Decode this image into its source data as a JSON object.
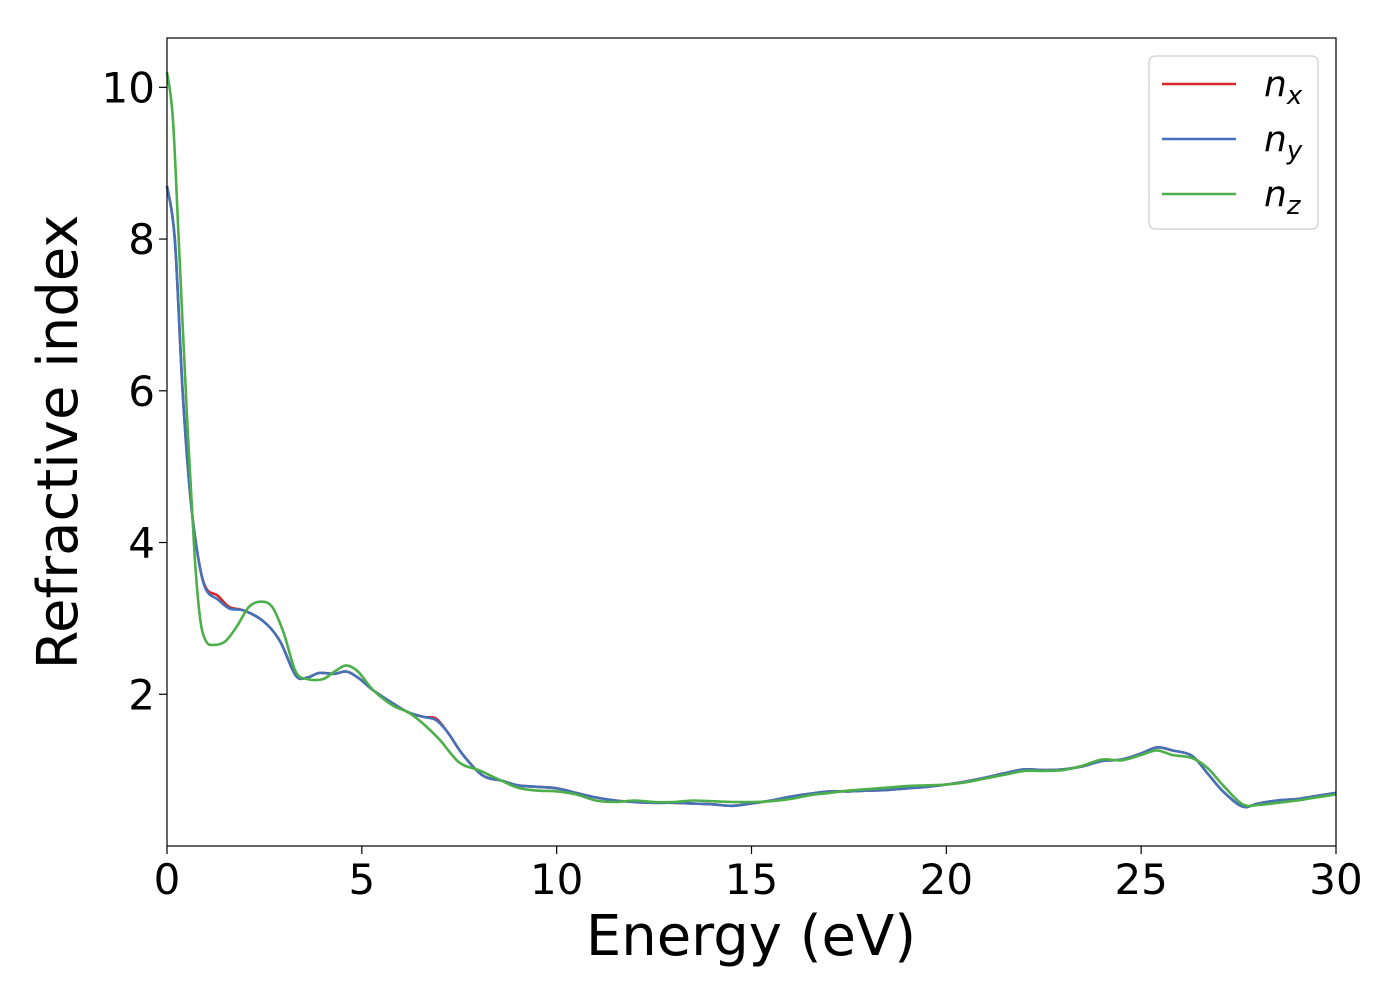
{
  "chart_data": {
    "type": "line",
    "title": "",
    "xlabel": "Energy (eV)",
    "ylabel": "Refractive index",
    "xlim": [
      0,
      30
    ],
    "ylim": [
      0,
      10.65
    ],
    "xticks": [
      0,
      5,
      10,
      15,
      20,
      25,
      30
    ],
    "xtick_labels": [
      "0",
      "5",
      "10",
      "15",
      "20",
      "25",
      "30"
    ],
    "yticks": [
      2,
      4,
      6,
      8,
      10
    ],
    "ytick_labels": [
      "2",
      "4",
      "6",
      "8",
      "10"
    ],
    "grid": false,
    "legend_position": "top-right",
    "series": [
      {
        "name": "n_x",
        "label_base": "n",
        "label_sub": "x",
        "color": "#d62728",
        "points": [
          [
            0,
            8.7
          ],
          [
            0.2,
            8.0
          ],
          [
            0.4,
            6.0
          ],
          [
            0.6,
            4.6
          ],
          [
            0.8,
            3.8
          ],
          [
            1.0,
            3.4
          ],
          [
            1.3,
            3.3
          ],
          [
            1.6,
            3.15
          ],
          [
            2.0,
            3.1
          ],
          [
            2.5,
            2.95
          ],
          [
            2.9,
            2.7
          ],
          [
            3.3,
            2.25
          ],
          [
            3.6,
            2.22
          ],
          [
            3.9,
            2.28
          ],
          [
            4.3,
            2.27
          ],
          [
            4.6,
            2.3
          ],
          [
            4.9,
            2.22
          ],
          [
            5.3,
            2.05
          ],
          [
            5.8,
            1.88
          ],
          [
            6.2,
            1.76
          ],
          [
            6.6,
            1.7
          ],
          [
            6.9,
            1.68
          ],
          [
            7.2,
            1.5
          ],
          [
            7.6,
            1.2
          ],
          [
            8.1,
            0.93
          ],
          [
            8.6,
            0.86
          ],
          [
            9.0,
            0.8
          ],
          [
            9.5,
            0.78
          ],
          [
            10.0,
            0.76
          ],
          [
            10.5,
            0.7
          ],
          [
            11.0,
            0.64
          ],
          [
            11.5,
            0.6
          ],
          [
            12.0,
            0.58
          ],
          [
            12.5,
            0.57
          ],
          [
            13.0,
            0.57
          ],
          [
            13.5,
            0.56
          ],
          [
            14.0,
            0.55
          ],
          [
            14.5,
            0.53
          ],
          [
            15.0,
            0.56
          ],
          [
            15.5,
            0.6
          ],
          [
            16.0,
            0.65
          ],
          [
            16.5,
            0.69
          ],
          [
            17.0,
            0.72
          ],
          [
            17.5,
            0.72
          ],
          [
            18.0,
            0.73
          ],
          [
            18.5,
            0.74
          ],
          [
            19.0,
            0.76
          ],
          [
            19.5,
            0.78
          ],
          [
            20.0,
            0.81
          ],
          [
            20.5,
            0.85
          ],
          [
            21.0,
            0.9
          ],
          [
            21.5,
            0.96
          ],
          [
            22.0,
            1.01
          ],
          [
            22.5,
            1.0
          ],
          [
            23.0,
            1.01
          ],
          [
            23.5,
            1.05
          ],
          [
            24.0,
            1.12
          ],
          [
            24.5,
            1.14
          ],
          [
            25.0,
            1.22
          ],
          [
            25.4,
            1.3
          ],
          [
            25.8,
            1.26
          ],
          [
            26.3,
            1.19
          ],
          [
            26.7,
            0.96
          ],
          [
            27.1,
            0.72
          ],
          [
            27.6,
            0.52
          ],
          [
            28.0,
            0.56
          ],
          [
            28.5,
            0.6
          ],
          [
            29.0,
            0.62
          ],
          [
            29.5,
            0.66
          ],
          [
            30.0,
            0.7
          ]
        ]
      },
      {
        "name": "n_y",
        "label_base": "n",
        "label_sub": "y",
        "color": "#4472b8",
        "points": [
          [
            0,
            8.7
          ],
          [
            0.2,
            8.0
          ],
          [
            0.4,
            6.0
          ],
          [
            0.6,
            4.6
          ],
          [
            0.8,
            3.8
          ],
          [
            1.0,
            3.38
          ],
          [
            1.3,
            3.25
          ],
          [
            1.6,
            3.13
          ],
          [
            2.0,
            3.1
          ],
          [
            2.5,
            2.95
          ],
          [
            2.9,
            2.7
          ],
          [
            3.3,
            2.25
          ],
          [
            3.6,
            2.22
          ],
          [
            3.9,
            2.28
          ],
          [
            4.3,
            2.27
          ],
          [
            4.6,
            2.3
          ],
          [
            4.9,
            2.22
          ],
          [
            5.3,
            2.05
          ],
          [
            5.8,
            1.88
          ],
          [
            6.2,
            1.76
          ],
          [
            6.6,
            1.7
          ],
          [
            6.9,
            1.66
          ],
          [
            7.2,
            1.5
          ],
          [
            7.6,
            1.2
          ],
          [
            8.1,
            0.93
          ],
          [
            8.6,
            0.86
          ],
          [
            9.0,
            0.8
          ],
          [
            9.5,
            0.78
          ],
          [
            10.0,
            0.76
          ],
          [
            10.5,
            0.7
          ],
          [
            11.0,
            0.64
          ],
          [
            11.5,
            0.6
          ],
          [
            12.0,
            0.58
          ],
          [
            12.5,
            0.57
          ],
          [
            13.0,
            0.57
          ],
          [
            13.5,
            0.56
          ],
          [
            14.0,
            0.55
          ],
          [
            14.5,
            0.53
          ],
          [
            15.0,
            0.56
          ],
          [
            15.5,
            0.6
          ],
          [
            16.0,
            0.65
          ],
          [
            16.5,
            0.69
          ],
          [
            17.0,
            0.72
          ],
          [
            17.5,
            0.72
          ],
          [
            18.0,
            0.73
          ],
          [
            18.5,
            0.74
          ],
          [
            19.0,
            0.76
          ],
          [
            19.5,
            0.78
          ],
          [
            20.0,
            0.81
          ],
          [
            20.5,
            0.85
          ],
          [
            21.0,
            0.9
          ],
          [
            21.5,
            0.96
          ],
          [
            22.0,
            1.01
          ],
          [
            22.5,
            1.0
          ],
          [
            23.0,
            1.01
          ],
          [
            23.5,
            1.05
          ],
          [
            24.0,
            1.12
          ],
          [
            24.5,
            1.14
          ],
          [
            25.0,
            1.22
          ],
          [
            25.4,
            1.3
          ],
          [
            25.8,
            1.26
          ],
          [
            26.3,
            1.19
          ],
          [
            26.7,
            0.96
          ],
          [
            27.1,
            0.72
          ],
          [
            27.6,
            0.52
          ],
          [
            28.0,
            0.56
          ],
          [
            28.5,
            0.6
          ],
          [
            29.0,
            0.62
          ],
          [
            29.5,
            0.66
          ],
          [
            30.0,
            0.7
          ]
        ]
      },
      {
        "name": "n_z",
        "label_base": "n",
        "label_sub": "z",
        "color": "#4daf4a",
        "points": [
          [
            0,
            10.2
          ],
          [
            0.15,
            9.6
          ],
          [
            0.3,
            8.0
          ],
          [
            0.5,
            5.8
          ],
          [
            0.7,
            3.9
          ],
          [
            0.85,
            3.0
          ],
          [
            1.0,
            2.7
          ],
          [
            1.2,
            2.65
          ],
          [
            1.5,
            2.7
          ],
          [
            1.8,
            2.9
          ],
          [
            2.1,
            3.15
          ],
          [
            2.4,
            3.22
          ],
          [
            2.7,
            3.15
          ],
          [
            3.0,
            2.8
          ],
          [
            3.3,
            2.3
          ],
          [
            3.6,
            2.2
          ],
          [
            4.0,
            2.2
          ],
          [
            4.3,
            2.3
          ],
          [
            4.6,
            2.38
          ],
          [
            4.9,
            2.3
          ],
          [
            5.3,
            2.05
          ],
          [
            5.8,
            1.85
          ],
          [
            6.2,
            1.76
          ],
          [
            6.6,
            1.6
          ],
          [
            7.0,
            1.4
          ],
          [
            7.5,
            1.1
          ],
          [
            8.0,
            1.0
          ],
          [
            8.5,
            0.88
          ],
          [
            9.0,
            0.77
          ],
          [
            9.5,
            0.73
          ],
          [
            10.0,
            0.72
          ],
          [
            10.5,
            0.68
          ],
          [
            11.0,
            0.6
          ],
          [
            11.5,
            0.58
          ],
          [
            12.0,
            0.6
          ],
          [
            12.5,
            0.58
          ],
          [
            13.0,
            0.58
          ],
          [
            13.5,
            0.6
          ],
          [
            14.0,
            0.59
          ],
          [
            14.5,
            0.58
          ],
          [
            15.0,
            0.58
          ],
          [
            15.5,
            0.59
          ],
          [
            16.0,
            0.62
          ],
          [
            16.5,
            0.67
          ],
          [
            17.0,
            0.7
          ],
          [
            17.5,
            0.73
          ],
          [
            18.0,
            0.75
          ],
          [
            18.5,
            0.77
          ],
          [
            19.0,
            0.79
          ],
          [
            19.5,
            0.8
          ],
          [
            20.0,
            0.81
          ],
          [
            20.5,
            0.84
          ],
          [
            21.0,
            0.89
          ],
          [
            21.5,
            0.94
          ],
          [
            22.0,
            0.99
          ],
          [
            22.5,
            0.99
          ],
          [
            23.0,
            1.0
          ],
          [
            23.5,
            1.06
          ],
          [
            24.0,
            1.14
          ],
          [
            24.5,
            1.13
          ],
          [
            25.0,
            1.2
          ],
          [
            25.4,
            1.26
          ],
          [
            25.8,
            1.2
          ],
          [
            26.3,
            1.16
          ],
          [
            26.7,
            1.03
          ],
          [
            27.1,
            0.8
          ],
          [
            27.6,
            0.55
          ],
          [
            28.0,
            0.54
          ],
          [
            28.5,
            0.57
          ],
          [
            29.0,
            0.6
          ],
          [
            29.5,
            0.64
          ],
          [
            30.0,
            0.68
          ]
        ]
      }
    ]
  }
}
